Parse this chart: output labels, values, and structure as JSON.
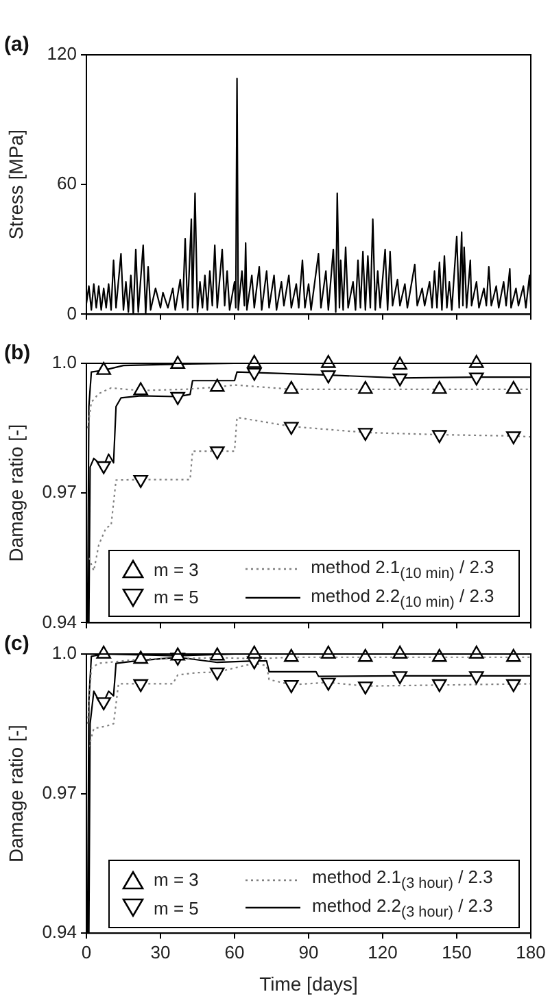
{
  "chart_data": [
    {
      "type": "line",
      "title": "(a)",
      "ylabel": "Stress [MPa]",
      "color": "#000000",
      "grid": false,
      "tick_labels": "y",
      "xlim": [
        0,
        180
      ],
      "xticks": [
        0,
        30,
        60,
        90,
        120,
        150,
        180
      ],
      "ylim": [
        0,
        120
      ],
      "yticks": [
        0,
        60,
        120
      ],
      "x": [
        0,
        1,
        2,
        3,
        4,
        5,
        6,
        7,
        8,
        9,
        10,
        11,
        12,
        14,
        15,
        16,
        17,
        18,
        19,
        20,
        21,
        23,
        24,
        25,
        26,
        28,
        30,
        31,
        33,
        35,
        36,
        38,
        39,
        40,
        41,
        42.5,
        43,
        44,
        45,
        46,
        47,
        48,
        49,
        50,
        51,
        52,
        53,
        55,
        56,
        57,
        58,
        60,
        60.5,
        61,
        61.5,
        63,
        64,
        64.5,
        65,
        67,
        68,
        70,
        71,
        73,
        74,
        76,
        77,
        79,
        80,
        82,
        83,
        85,
        86,
        87.5,
        88.5,
        90,
        91,
        94,
        95,
        97,
        98,
        100,
        101,
        101.6,
        102.5,
        103,
        104,
        105,
        106,
        108,
        109,
        110,
        111,
        112,
        113,
        114,
        115,
        116,
        117,
        118,
        119,
        121,
        122,
        123,
        124,
        126,
        127,
        129,
        130,
        133,
        134,
        136,
        137,
        139,
        140,
        141,
        142,
        143,
        144,
        145,
        146,
        147,
        148,
        150,
        151,
        152,
        152.5,
        153,
        154,
        155.5,
        156,
        158,
        159,
        161,
        162,
        163,
        164,
        166,
        167,
        169,
        170,
        171.5,
        172,
        174,
        175,
        177,
        178,
        179.5,
        180
      ],
      "values": [
        5,
        13,
        2,
        14,
        3,
        13,
        2,
        12,
        3,
        14,
        2,
        25,
        3,
        28,
        2,
        15,
        1,
        18,
        0,
        30,
        1,
        32,
        0,
        22,
        2,
        12,
        3,
        10,
        3,
        12,
        2,
        16,
        3,
        35,
        2,
        44,
        3,
        56,
        1,
        15,
        3,
        18,
        2,
        20,
        4,
        32,
        3,
        30,
        4,
        20,
        2,
        15,
        3,
        109,
        2,
        20,
        4,
        33,
        2,
        18,
        3,
        22,
        2,
        20,
        3,
        18,
        2,
        15,
        4,
        18,
        3,
        14,
        3,
        25,
        3,
        14,
        2,
        28,
        3,
        20,
        2,
        30,
        1,
        56,
        3,
        25,
        2,
        31,
        3,
        15,
        2,
        25,
        3,
        29,
        2,
        27,
        3,
        44,
        2,
        20,
        3,
        30,
        2,
        29,
        4,
        16,
        4,
        14,
        3,
        23,
        4,
        12,
        4,
        15,
        3,
        20,
        3,
        24,
        2,
        27,
        3,
        15,
        2,
        36,
        3,
        38,
        4,
        31,
        3,
        25,
        4,
        15,
        3,
        12,
        4,
        22,
        4,
        13,
        3,
        15,
        4,
        21,
        3,
        12,
        4,
        13,
        3,
        18,
        5
      ]
    },
    {
      "type": "line",
      "title": "(b)",
      "ylabel": "Damage ratio [-]",
      "grid": false,
      "legend": "bottom",
      "tick_labels": "y",
      "xlim": [
        0,
        180
      ],
      "xticks": [
        0,
        30,
        60,
        90,
        120,
        150,
        180
      ],
      "ylim": [
        0.94,
        1.0
      ],
      "yticks": [
        0.94,
        0.97,
        {
          "value": 1.0,
          "label": "1.0"
        }
      ],
      "series": [
        {
          "name": "m = 3",
          "type": "scatter",
          "marker": "triangle",
          "color": "#000000",
          "x": [
            7,
            22,
            37,
            53,
            68,
            83,
            98,
            113,
            127,
            143,
            158,
            173
          ],
          "values": [
            0.9984,
            0.9937,
            0.9998,
            0.9945,
            1.0,
            0.994,
            1.0,
            0.994,
            0.9996,
            0.994,
            1.0,
            0.994
          ]
        },
        {
          "name": "method 2.1$_{(10 min)}$ / 2.3",
          "line_style": "dotted",
          "color": "#808080",
          "x": [
            0.5,
            2,
            5,
            10,
            22,
            40,
            53,
            60,
            83,
            180
          ],
          "values": [
            0.985,
            0.991,
            0.993,
            0.9943,
            0.9937,
            0.994,
            0.9945,
            0.995,
            0.994,
            0.994
          ]
        },
        {
          "name": "m = 5",
          "type": "scatter",
          "marker": "triangle-down",
          "color": "#000000",
          "x": [
            7,
            22,
            37,
            53,
            68,
            83,
            98,
            113,
            127,
            143,
            158,
            173
          ],
          "values": [
            0.9763,
            0.9731,
            0.9923,
            0.9797,
            0.9979,
            0.9854,
            0.9973,
            0.984,
            0.9966,
            0.9835,
            0.9968,
            0.9832
          ]
        },
        {
          "name": "method 2.2$_{(10 min)}$ / 2.3",
          "line_style": "solid",
          "color": "#000000",
          "x": [
            0.5,
            1,
            2,
            7,
            15,
            37,
            60,
            180
          ],
          "values": [
            0.94,
            0.99,
            0.998,
            0.9984,
            0.9995,
            0.9998,
            1.0,
            1.0
          ]
        },
        {
          "line_style": "dotted",
          "color": "#808080",
          "x": [
            1,
            3,
            5,
            8,
            10,
            12,
            22,
            42,
            43,
            60,
            61,
            83,
            113,
            143,
            173,
            180
          ],
          "values": [
            0.955,
            0.952,
            0.958,
            0.962,
            0.9625,
            0.973,
            0.9731,
            0.9731,
            0.9797,
            0.9797,
            0.9875,
            0.9854,
            0.984,
            0.9835,
            0.9832,
            0.983
          ]
        },
        {
          "line_style": "solid",
          "color": "#000000",
          "x": [
            1,
            1.5,
            3,
            5,
            7,
            9,
            11,
            12,
            14,
            22,
            37,
            42,
            43,
            60,
            61,
            98,
            127,
            158,
            180
          ],
          "values": [
            0.94,
            0.976,
            0.978,
            0.977,
            0.9763,
            0.979,
            0.977,
            0.99,
            0.992,
            0.9925,
            0.9923,
            0.9928,
            0.996,
            0.996,
            0.998,
            0.9973,
            0.9966,
            0.9968,
            0.9968
          ]
        }
      ]
    },
    {
      "type": "line",
      "title": "(c)",
      "xlabel": "Time [days]",
      "ylabel": "Damage ratio [-]",
      "grid": false,
      "legend": "bottom",
      "xlim": [
        0,
        180
      ],
      "xticks": [
        0,
        30,
        60,
        90,
        120,
        150,
        180
      ],
      "ylim": [
        0.94,
        1.0
      ],
      "yticks": [
        0.94,
        0.97,
        {
          "value": 1.0,
          "label": "1.0"
        }
      ],
      "series": [
        {
          "name": "m = 3",
          "type": "scatter",
          "marker": "triangle",
          "color": "#000000",
          "x": [
            7,
            22,
            37,
            53,
            68,
            83,
            98,
            113,
            127,
            143,
            158,
            173
          ],
          "values": [
            1.0,
            0.9989,
            0.9996,
            0.9996,
            1.0,
            0.9993,
            1.0,
            0.9993,
            1.0,
            0.9993,
            1.0,
            0.9993
          ]
        },
        {
          "name": "method 2.1$_{(3 hour)}$ / 2.3",
          "line_style": "dotted",
          "color": "#808080",
          "x": [
            0.5,
            2,
            5,
            22,
            53,
            70,
            83,
            180
          ],
          "values": [
            0.985,
            0.997,
            0.998,
            0.9989,
            0.9992,
            0.999,
            0.9993,
            0.9993
          ]
        },
        {
          "name": "m = 5",
          "type": "scatter",
          "marker": "triangle-down",
          "color": "#000000",
          "x": [
            7,
            22,
            37,
            53,
            68,
            83,
            98,
            113,
            127,
            143,
            158,
            173
          ],
          "values": [
            0.9897,
            0.9936,
            0.9993,
            0.9961,
            0.9985,
            0.9934,
            0.9939,
            0.9931,
            0.9953,
            0.9936,
            0.9953,
            0.9936
          ]
        },
        {
          "name": "method 2.2$_{(3 hour)}$ / 2.3",
          "line_style": "solid",
          "color": "#000000",
          "x": [
            0.5,
            1,
            2,
            7,
            37,
            60,
            180
          ],
          "values": [
            0.94,
            0.99,
            0.9995,
            1.0,
            0.9996,
            1.0,
            1.0
          ]
        },
        {
          "line_style": "dotted",
          "color": "#808080",
          "x": [
            1,
            3,
            8,
            11,
            13,
            22,
            35,
            37,
            45,
            53,
            60,
            68,
            73,
            74,
            83,
            98,
            113,
            180
          ],
          "values": [
            0.98,
            0.984,
            0.9845,
            0.985,
            0.9936,
            0.9936,
            0.9936,
            0.9955,
            0.996,
            0.9961,
            0.997,
            0.998,
            0.9975,
            0.9945,
            0.9934,
            0.9939,
            0.9931,
            0.9936
          ]
        },
        {
          "line_style": "solid",
          "color": "#000000",
          "x": [
            1,
            1.5,
            3,
            5,
            7,
            9,
            11,
            12,
            20,
            37,
            53,
            68,
            73,
            74,
            93,
            94,
            127,
            180
          ],
          "values": [
            0.94,
            0.985,
            0.992,
            0.99,
            0.9897,
            0.992,
            0.991,
            0.998,
            0.9985,
            0.9993,
            0.9982,
            0.9985,
            0.9985,
            0.9962,
            0.9962,
            0.9952,
            0.9953,
            0.9953
          ]
        }
      ]
    }
  ]
}
